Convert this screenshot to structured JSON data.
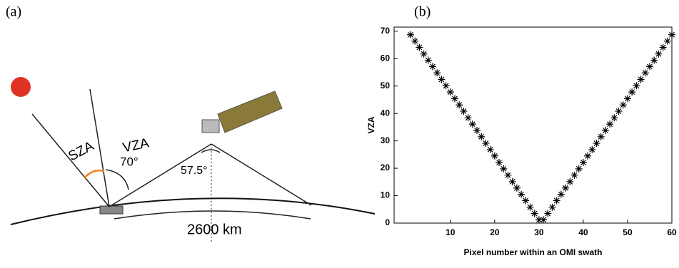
{
  "diagram": {
    "panel_label": "(a)",
    "sza_label": "SZA",
    "vza_label": "VZA",
    "vza_angle": "70°",
    "sat_angle": "57.5°",
    "swath_label": "2600 km"
  },
  "chart_data": {
    "type": "scatter",
    "panel_label": "(b)",
    "x_label": "Pixel number within an OMI swath",
    "y_label": "VZA",
    "x": [
      1,
      2,
      3,
      4,
      5,
      6,
      7,
      8,
      9,
      10,
      11,
      12,
      13,
      14,
      15,
      16,
      17,
      18,
      19,
      20,
      21,
      22,
      23,
      24,
      25,
      26,
      27,
      28,
      29,
      30,
      31,
      32,
      33,
      34,
      35,
      36,
      37,
      38,
      39,
      40,
      41,
      42,
      43,
      44,
      45,
      46,
      47,
      48,
      49,
      50,
      51,
      52,
      53,
      54,
      55,
      56,
      57,
      58,
      59,
      60
    ],
    "values": [
      68.7,
      66.4,
      64.1,
      61.7,
      59.4,
      57.1,
      54.8,
      52.4,
      50.1,
      47.8,
      45.4,
      43.1,
      40.8,
      38.4,
      36.1,
      33.8,
      31.5,
      29.1,
      26.8,
      24.5,
      22.1,
      19.8,
      17.5,
      15.1,
      12.8,
      10.5,
      8.2,
      5.8,
      3.5,
      1.2,
      1.2,
      3.5,
      5.8,
      8.2,
      10.5,
      12.8,
      15.1,
      17.5,
      19.8,
      22.1,
      24.5,
      26.8,
      29.1,
      31.5,
      33.8,
      36.1,
      38.4,
      40.8,
      43.1,
      45.4,
      47.8,
      50.1,
      52.4,
      54.8,
      57.1,
      59.4,
      61.7,
      64.1,
      66.4,
      68.7
    ],
    "color": "#000000",
    "marker": "asterisk",
    "xlim": [
      -2.7,
      60
    ],
    "ylim": [
      0,
      71.5
    ],
    "xticks": [
      10,
      20,
      30,
      40,
      50,
      60
    ],
    "yticks": [
      0,
      10,
      20,
      30,
      40,
      50,
      60,
      70
    ]
  }
}
